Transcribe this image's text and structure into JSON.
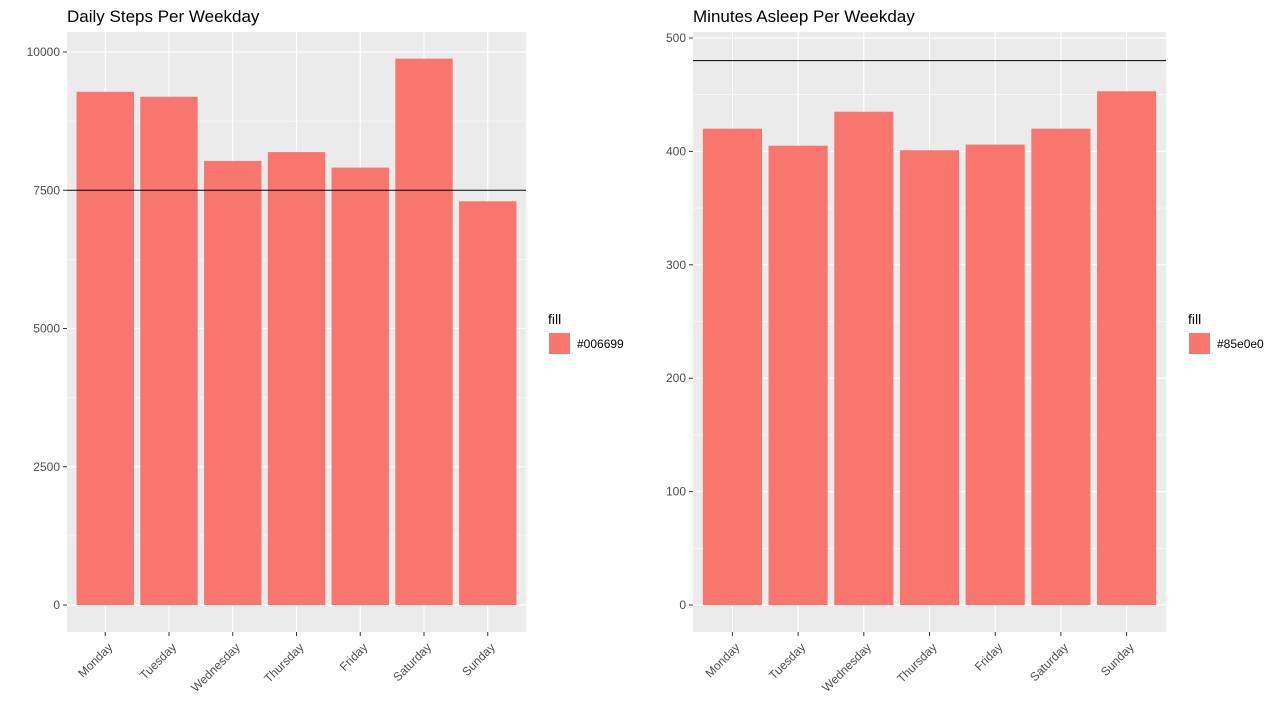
{
  "chart_data": [
    {
      "type": "bar",
      "title": "Daily Steps Per Weekday",
      "xlabel": "",
      "ylabel": "",
      "categories": [
        "Monday",
        "Tuesday",
        "Wednesday",
        "Thursday",
        "Friday",
        "Saturday",
        "Sunday"
      ],
      "values": [
        9280,
        9190,
        8030,
        8190,
        7910,
        9880,
        7300
      ],
      "ylim": [
        0,
        10000
      ],
      "yticks": [
        0,
        2500,
        5000,
        7500,
        10000
      ],
      "reference_line": 7500,
      "grid": true,
      "legend": {
        "title": "fill",
        "label": "#006699",
        "swatch_color": "#F8766D",
        "position": "right"
      }
    },
    {
      "type": "bar",
      "title": "Minutes Asleep Per Weekday",
      "xlabel": "",
      "ylabel": "",
      "categories": [
        "Monday",
        "Tuesday",
        "Wednesday",
        "Thursday",
        "Friday",
        "Saturday",
        "Sunday"
      ],
      "values": [
        420,
        405,
        435,
        401,
        406,
        420,
        453
      ],
      "ylim": [
        0,
        500
      ],
      "yticks": [
        0,
        100,
        200,
        300,
        400,
        500
      ],
      "reference_line": 480,
      "grid": true,
      "legend": {
        "title": "fill",
        "label": "#85e0e0",
        "swatch_color": "#F8766D",
        "position": "right"
      }
    }
  ],
  "colors": {
    "bar": "#F8766D",
    "panel": "#EBEBEB",
    "gridline": "#FFFFFF",
    "reference": "#000000"
  }
}
